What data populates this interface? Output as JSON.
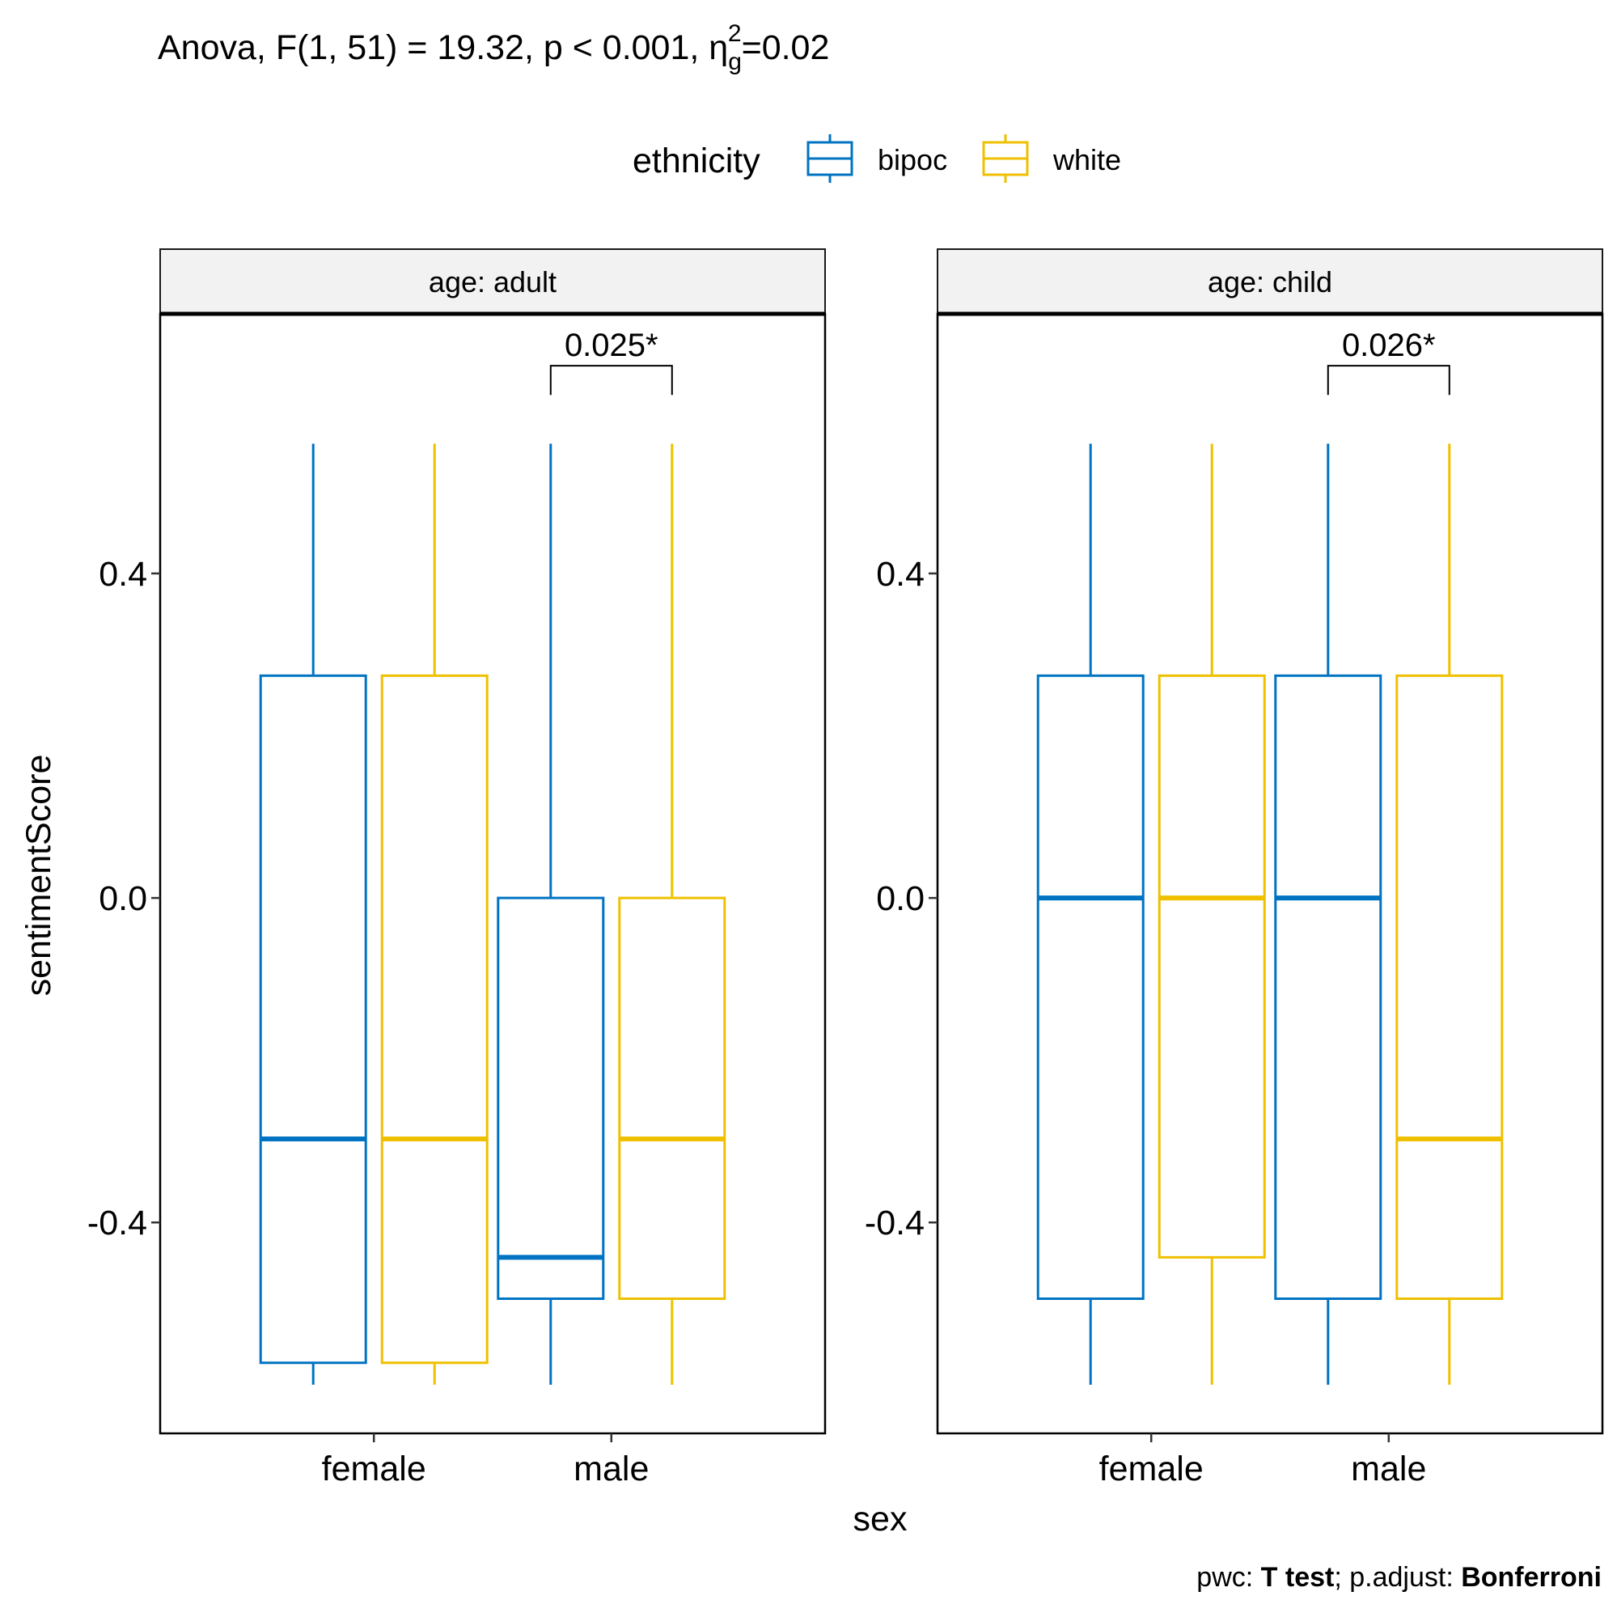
{
  "chart_data": {
    "type": "boxplot",
    "title": {
      "prefix": "Anova, F(1, 51) = 19.32, p < 0.001, η",
      "sub": "g",
      "sup": "2",
      "suffix": "=0.02"
    },
    "caption": {
      "part1": "pwc: ",
      "part2": "T test",
      "part3": "; p.adjust: ",
      "part4": "Bonferroni"
    },
    "xlabel": "sex",
    "ylabel": "sentimentScore",
    "ylim": [
      -0.66,
      0.72
    ],
    "yticks": [
      {
        "value": -0.4,
        "label": "-0.4"
      },
      {
        "value": 0.0,
        "label": "0.0"
      },
      {
        "value": 0.4,
        "label": "0.4"
      }
    ],
    "categories": [
      "female",
      "male"
    ],
    "legend": {
      "title": "ethnicity",
      "position": "top",
      "items": [
        {
          "name": "bipoc",
          "color": "#0073C2"
        },
        {
          "name": "white",
          "color": "#EFC000"
        }
      ]
    },
    "panels": [
      {
        "label": "age: adult",
        "groups": [
          {
            "category": "female",
            "ethnicity": "bipoc",
            "whisker_low": -0.6,
            "q1": -0.573,
            "median": -0.297,
            "q3": 0.274,
            "whisker_high": 0.56
          },
          {
            "category": "female",
            "ethnicity": "white",
            "whisker_low": -0.6,
            "q1": -0.573,
            "median": -0.297,
            "q3": 0.274,
            "whisker_high": 0.56
          },
          {
            "category": "male",
            "ethnicity": "bipoc",
            "whisker_low": -0.6,
            "q1": -0.494,
            "median": -0.443,
            "q3": 0.0,
            "whisker_high": 0.56
          },
          {
            "category": "male",
            "ethnicity": "white",
            "whisker_low": -0.6,
            "q1": -0.494,
            "median": -0.297,
            "q3": 0.0,
            "whisker_high": 0.56
          }
        ],
        "brackets": [
          {
            "category": "male",
            "label": "0.025*",
            "y": 0.656,
            "tip": 0.62
          }
        ]
      },
      {
        "label": "age: child",
        "groups": [
          {
            "category": "female",
            "ethnicity": "bipoc",
            "whisker_low": -0.6,
            "q1": -0.494,
            "median": 0.0,
            "q3": 0.274,
            "whisker_high": 0.56
          },
          {
            "category": "female",
            "ethnicity": "white",
            "whisker_low": -0.6,
            "q1": -0.443,
            "median": 0.0,
            "q3": 0.274,
            "whisker_high": 0.56
          },
          {
            "category": "male",
            "ethnicity": "bipoc",
            "whisker_low": -0.6,
            "q1": -0.494,
            "median": 0.0,
            "q3": 0.274,
            "whisker_high": 0.56
          },
          {
            "category": "male",
            "ethnicity": "white",
            "whisker_low": -0.6,
            "q1": -0.494,
            "median": -0.297,
            "q3": 0.274,
            "whisker_high": 0.56
          }
        ],
        "brackets": [
          {
            "category": "male",
            "label": "0.026*",
            "y": 0.656,
            "tip": 0.62
          }
        ]
      }
    ]
  }
}
